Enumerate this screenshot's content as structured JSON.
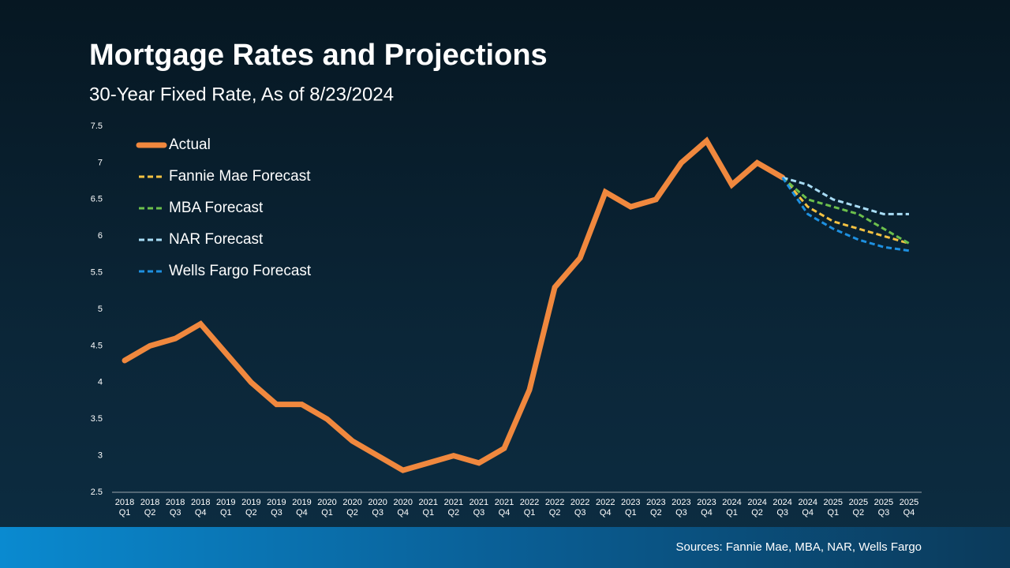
{
  "chart_data": {
    "type": "line",
    "title": "Mortgage Rates and Projections",
    "subtitle": "30-Year Fixed Rate, As of 8/23/2024",
    "source": "Sources: Fannie Mae, MBA, NAR, Wells Fargo",
    "categories": [
      "2018 Q1",
      "2018 Q2",
      "2018 Q3",
      "2018 Q4",
      "2019 Q1",
      "2019 Q2",
      "2019 Q3",
      "2019 Q4",
      "2020 Q1",
      "2020 Q2",
      "2020 Q3",
      "2020 Q4",
      "2021 Q1",
      "2021 Q2",
      "2021 Q3",
      "2021 Q4",
      "2022 Q1",
      "2022 Q2",
      "2022 Q3",
      "2022 Q4",
      "2023 Q1",
      "2023 Q2",
      "2023 Q3",
      "2023 Q4",
      "2024 Q1",
      "2024 Q2",
      "2024 Q3",
      "2024 Q4",
      "2025 Q1",
      "2025 Q2",
      "2025 Q3",
      "2025 Q4"
    ],
    "series": [
      {
        "name": "Actual",
        "color": "#f0883e",
        "dashed": false,
        "values": [
          4.3,
          4.5,
          4.6,
          4.8,
          4.4,
          4.0,
          3.7,
          3.7,
          3.5,
          3.2,
          3.0,
          2.8,
          2.9,
          3.0,
          2.9,
          3.1,
          3.9,
          5.3,
          5.7,
          6.6,
          6.4,
          6.5,
          7.0,
          7.3,
          6.7,
          7.0,
          6.8,
          null,
          null,
          null,
          null,
          null
        ]
      },
      {
        "name": "Fannie Mae Forecast",
        "color": "#f5c242",
        "dashed": true,
        "values": [
          null,
          null,
          null,
          null,
          null,
          null,
          null,
          null,
          null,
          null,
          null,
          null,
          null,
          null,
          null,
          null,
          null,
          null,
          null,
          null,
          null,
          null,
          null,
          null,
          null,
          null,
          6.8,
          6.4,
          6.2,
          6.1,
          6.0,
          5.9
        ]
      },
      {
        "name": "MBA Forecast",
        "color": "#6cbf4c",
        "dashed": true,
        "values": [
          null,
          null,
          null,
          null,
          null,
          null,
          null,
          null,
          null,
          null,
          null,
          null,
          null,
          null,
          null,
          null,
          null,
          null,
          null,
          null,
          null,
          null,
          null,
          null,
          null,
          null,
          6.8,
          6.5,
          6.4,
          6.3,
          6.1,
          5.9
        ]
      },
      {
        "name": "NAR Forecast",
        "color": "#a8dcf5",
        "dashed": true,
        "values": [
          null,
          null,
          null,
          null,
          null,
          null,
          null,
          null,
          null,
          null,
          null,
          null,
          null,
          null,
          null,
          null,
          null,
          null,
          null,
          null,
          null,
          null,
          null,
          null,
          null,
          null,
          6.8,
          6.7,
          6.5,
          6.4,
          6.3,
          6.3
        ]
      },
      {
        "name": "Wells Fargo Forecast",
        "color": "#1e90e0",
        "dashed": true,
        "values": [
          null,
          null,
          null,
          null,
          null,
          null,
          null,
          null,
          null,
          null,
          null,
          null,
          null,
          null,
          null,
          null,
          null,
          null,
          null,
          null,
          null,
          null,
          null,
          null,
          null,
          null,
          6.8,
          6.3,
          6.1,
          5.95,
          5.85,
          5.8
        ]
      }
    ],
    "ylim": [
      2.5,
      7.5
    ],
    "yticks": [
      2.5,
      3,
      3.5,
      4,
      4.5,
      5,
      5.5,
      6,
      6.5,
      7,
      7.5
    ],
    "grid": false,
    "legend": "top-left"
  }
}
